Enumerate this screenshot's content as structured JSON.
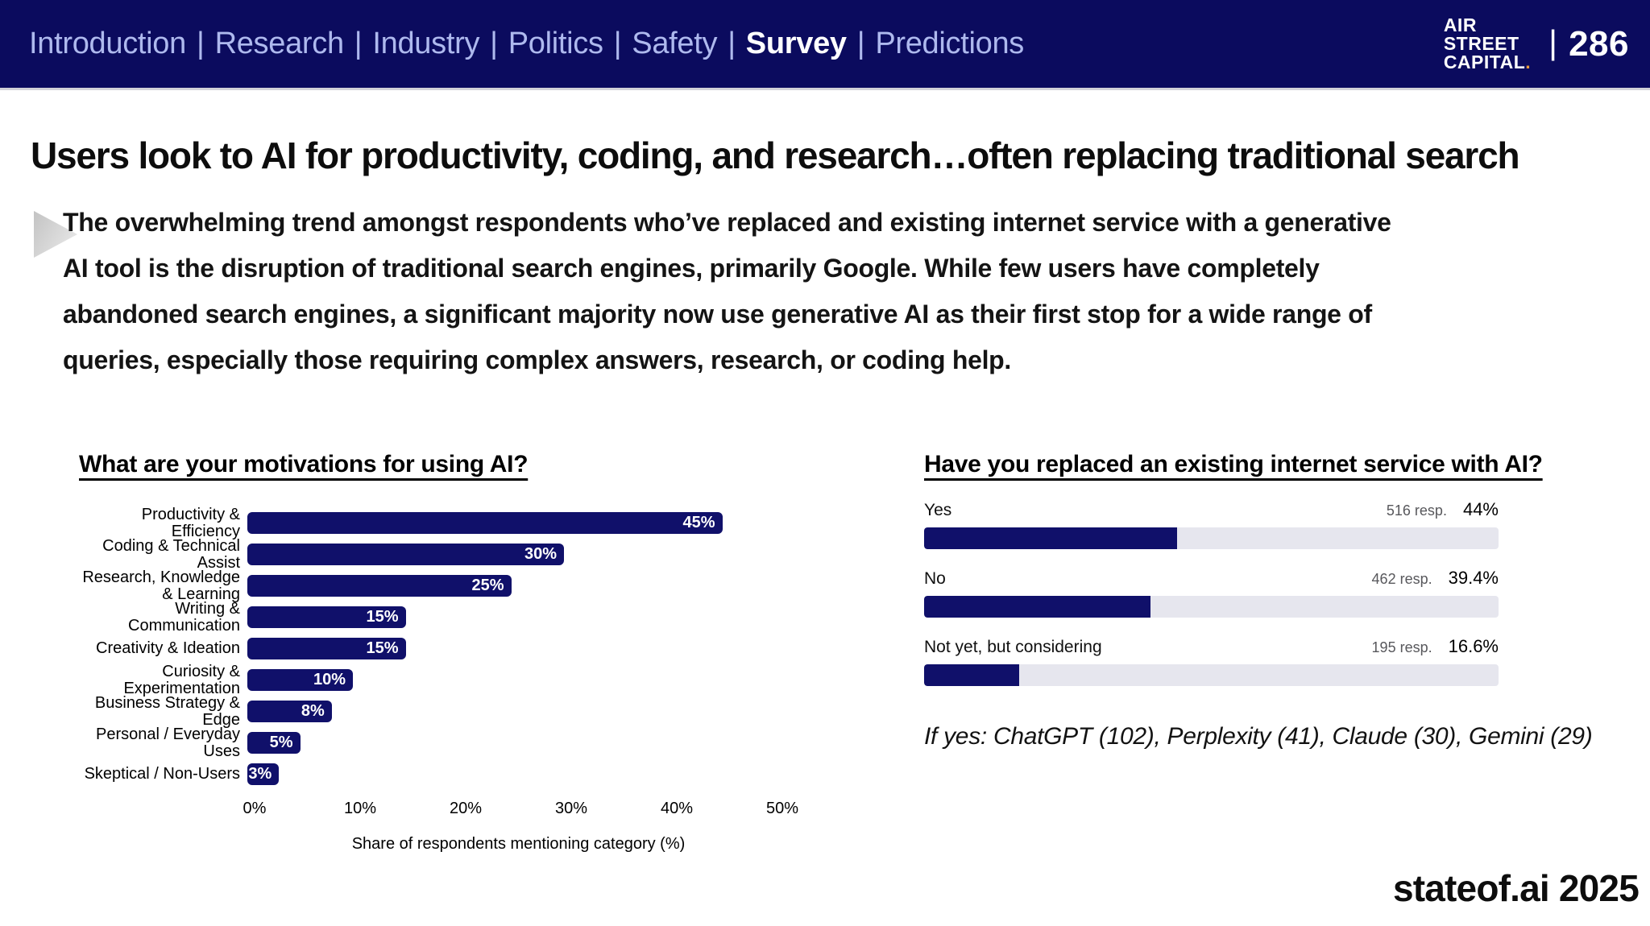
{
  "colors": {
    "nav_bg": "#0b0b5e",
    "nav_text": "#aeb9ee",
    "bar_navy": "#10106a",
    "track": "#e6e6ee",
    "orange": "#e99a3a"
  },
  "nav": {
    "items": [
      "Introduction",
      "Research",
      "Industry",
      "Politics",
      "Safety",
      "Survey",
      "Predictions"
    ],
    "active_item": "Survey",
    "separator": "|",
    "logo_lines": [
      "AIR",
      "STREET",
      "CAPITAL"
    ],
    "logo_dot": ".",
    "page_separator": "|",
    "page_number": "286"
  },
  "slide": {
    "title": "Users look to AI for productivity, coding, and research…often replacing traditional search",
    "bullet_text": "The overwhelming trend amongst respondents who’ve replaced and existing internet service with a generative\nAI tool is the disruption of traditional search engines, primarily Google. While few users have completely\nabandoned search engines, a significant majority now use generative AI as their first stop for a wide range of\nqueries, especially those requiring complex answers, research, or coding help.",
    "footer": "stateof.ai 2025"
  },
  "chart_data": [
    {
      "type": "bar",
      "orientation": "horizontal",
      "title": "What are your motivations for using AI?",
      "categories": [
        "Productivity & Efficiency",
        "Coding & Technical Assist",
        "Research, Knowledge & Learning",
        "Writing & Communication",
        "Creativity & Ideation",
        "Curiosity & Experimentation",
        "Business Strategy & Edge",
        "Personal / Everyday Uses",
        "Skeptical / Non-Users"
      ],
      "values": [
        45,
        30,
        25,
        15,
        15,
        10,
        8,
        5,
        3
      ],
      "value_labels": [
        "45%",
        "30%",
        "25%",
        "15%",
        "15%",
        "10%",
        "8%",
        "5%",
        "3%"
      ],
      "xlabel": "Share of respondents mentioning category (%)",
      "xlim": [
        0,
        50
      ],
      "xticks": [
        "0%",
        "10%",
        "20%",
        "30%",
        "40%",
        "50%"
      ],
      "grid": false,
      "bar_color": "#10106a"
    },
    {
      "type": "bar",
      "orientation": "horizontal",
      "title": "Have you replaced an existing internet service with AI?",
      "categories": [
        "Yes",
        "No",
        "Not yet, but considering"
      ],
      "values": [
        44,
        39.4,
        16.6
      ],
      "value_labels": [
        "44%",
        "39.4%",
        "16.6%"
      ],
      "respondents": [
        516,
        462,
        195
      ],
      "respondent_labels": [
        "516 resp.",
        "462 resp.",
        "195 resp."
      ],
      "xlim": [
        0,
        100
      ],
      "grid": false,
      "bar_color": "#10106a",
      "track_color": "#e6e6ee",
      "note": "If yes: ChatGPT (102), Perplexity (41), Claude (30), Gemini (29)"
    }
  ]
}
